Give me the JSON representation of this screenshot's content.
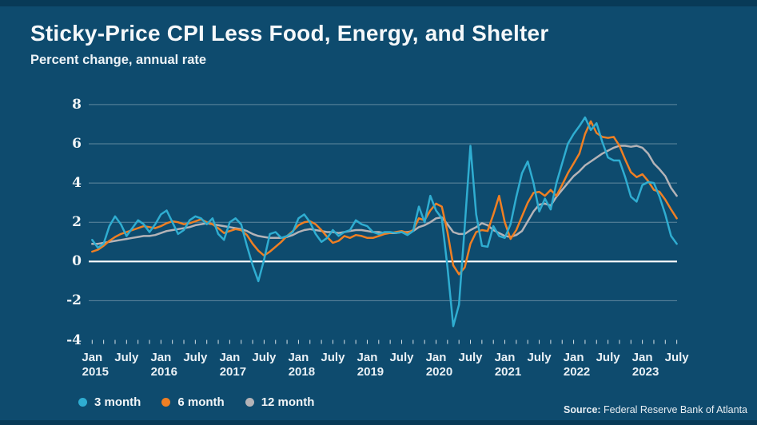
{
  "header": {
    "title": "Sticky-Price CPI Less Food, Energy, and Shelter",
    "subtitle": "Percent change, annual rate"
  },
  "legend": {
    "items": [
      {
        "label": "3 month",
        "color": "#2FADD1"
      },
      {
        "label": "6 month",
        "color": "#EF7F23"
      },
      {
        "label": "12 month",
        "color": "#B4B3B7"
      }
    ]
  },
  "source": {
    "prefix": "Source:",
    "text": " Federal Reserve Bank of Atlanta"
  },
  "colors": {
    "background": "#0E4B6E",
    "band": "#083A57",
    "grid": "rgba(255,255,255,0.34)",
    "zero_line": "#FFFFFF",
    "tick": "rgba(255,255,255,0.85)",
    "text": "#F2F6F8"
  },
  "chart_data": {
    "type": "line",
    "title": "Sticky-Price CPI Less Food, Energy, and Shelter",
    "ylabel": "Percent change, annual rate",
    "xlabel": "",
    "ylim": [
      -4,
      8
    ],
    "yticks": [
      8,
      6,
      4,
      2,
      0,
      -2,
      -4
    ],
    "x_start": "Jan 2015",
    "x_end": "July 2023",
    "frequency": "monthly",
    "legend_position": "bottom",
    "grid": "horizontal",
    "xticks": [
      {
        "m": 0,
        "label": "Jan",
        "year": "2015"
      },
      {
        "m": 6,
        "label": "July"
      },
      {
        "m": 12,
        "label": "Jan",
        "year": "2016"
      },
      {
        "m": 18,
        "label": "July"
      },
      {
        "m": 24,
        "label": "Jan",
        "year": "2017"
      },
      {
        "m": 30,
        "label": "July"
      },
      {
        "m": 36,
        "label": "Jan",
        "year": "2018"
      },
      {
        "m": 42,
        "label": "July"
      },
      {
        "m": 48,
        "label": "Jan",
        "year": "2019"
      },
      {
        "m": 54,
        "label": "July"
      },
      {
        "m": 60,
        "label": "Jan",
        "year": "2020"
      },
      {
        "m": 66,
        "label": "July"
      },
      {
        "m": 72,
        "label": "Jan",
        "year": "2021"
      },
      {
        "m": 78,
        "label": "July"
      },
      {
        "m": 84,
        "label": "Jan",
        "year": "2022"
      },
      {
        "m": 90,
        "label": "July"
      },
      {
        "m": 96,
        "label": "Jan",
        "year": "2023"
      },
      {
        "m": 102,
        "label": "July"
      }
    ],
    "series": [
      {
        "name": "3 month",
        "color": "#2FADD1",
        "values": [
          1.1,
          0.7,
          0.9,
          1.8,
          2.3,
          1.9,
          1.3,
          1.7,
          2.1,
          1.9,
          1.5,
          1.9,
          2.4,
          2.6,
          2.0,
          1.4,
          1.6,
          2.1,
          2.3,
          2.2,
          1.9,
          2.2,
          1.4,
          1.1,
          2.0,
          2.2,
          1.9,
          0.8,
          -0.2,
          -1.0,
          0.1,
          1.4,
          1.5,
          1.2,
          1.3,
          1.5,
          2.2,
          2.4,
          2.0,
          1.4,
          1.0,
          1.2,
          1.6,
          1.3,
          1.5,
          1.6,
          2.1,
          1.9,
          1.8,
          1.5,
          1.4,
          1.5,
          1.5,
          1.45,
          1.5,
          1.35,
          1.55,
          2.8,
          2.0,
          3.35,
          2.6,
          2.2,
          -0.3,
          -3.3,
          -2.2,
          1.8,
          5.9,
          2.4,
          0.8,
          0.75,
          1.8,
          1.3,
          1.2,
          1.9,
          3.3,
          4.5,
          5.1,
          4.0,
          2.55,
          3.2,
          2.65,
          4.0,
          5.0,
          6.0,
          6.5,
          6.9,
          7.35,
          6.7,
          7.05,
          6.1,
          5.3,
          5.15,
          5.15,
          4.3,
          3.3,
          3.05,
          3.9,
          4.05,
          4.0,
          3.3,
          2.4,
          1.3,
          0.9
        ]
      },
      {
        "name": "6 month",
        "color": "#EF7F23",
        "values": [
          0.5,
          0.6,
          0.8,
          1.05,
          1.25,
          1.4,
          1.5,
          1.6,
          1.7,
          1.8,
          1.75,
          1.7,
          1.8,
          1.95,
          2.05,
          2.0,
          1.9,
          1.95,
          2.05,
          2.15,
          2.0,
          1.9,
          1.7,
          1.45,
          1.55,
          1.65,
          1.6,
          1.35,
          0.9,
          0.55,
          0.3,
          0.5,
          0.75,
          1.0,
          1.3,
          1.55,
          1.85,
          2.0,
          2.05,
          1.9,
          1.6,
          1.25,
          0.95,
          1.05,
          1.3,
          1.2,
          1.35,
          1.3,
          1.2,
          1.2,
          1.3,
          1.4,
          1.45,
          1.5,
          1.55,
          1.45,
          1.6,
          2.2,
          2.1,
          2.6,
          2.95,
          2.8,
          1.5,
          -0.2,
          -0.65,
          -0.3,
          0.9,
          1.5,
          1.6,
          1.55,
          2.4,
          3.35,
          2.0,
          1.15,
          1.6,
          2.3,
          3.0,
          3.5,
          3.55,
          3.35,
          3.65,
          3.35,
          3.9,
          4.5,
          5.0,
          5.5,
          6.5,
          7.15,
          6.55,
          6.35,
          6.3,
          6.35,
          5.9,
          5.2,
          4.55,
          4.3,
          4.45,
          4.1,
          3.65,
          3.55,
          3.15,
          2.65,
          2.2
        ]
      },
      {
        "name": "12 month",
        "color": "#B4B3B7",
        "values": [
          0.9,
          0.9,
          0.95,
          1.0,
          1.05,
          1.1,
          1.15,
          1.2,
          1.25,
          1.3,
          1.3,
          1.35,
          1.45,
          1.55,
          1.6,
          1.65,
          1.7,
          1.75,
          1.85,
          1.9,
          1.95,
          1.9,
          1.85,
          1.8,
          1.75,
          1.7,
          1.65,
          1.55,
          1.4,
          1.3,
          1.25,
          1.2,
          1.2,
          1.2,
          1.25,
          1.35,
          1.5,
          1.6,
          1.65,
          1.6,
          1.55,
          1.5,
          1.5,
          1.45,
          1.5,
          1.55,
          1.6,
          1.6,
          1.55,
          1.5,
          1.5,
          1.45,
          1.45,
          1.45,
          1.5,
          1.5,
          1.55,
          1.75,
          1.85,
          2.0,
          2.2,
          2.25,
          1.9,
          1.5,
          1.4,
          1.4,
          1.6,
          1.75,
          1.95,
          1.85,
          1.6,
          1.45,
          1.3,
          1.25,
          1.35,
          1.55,
          2.05,
          2.55,
          2.9,
          2.95,
          2.85,
          3.3,
          3.65,
          4.0,
          4.35,
          4.6,
          4.9,
          5.1,
          5.3,
          5.5,
          5.65,
          5.8,
          5.9,
          5.9,
          5.85,
          5.9,
          5.8,
          5.5,
          5.0,
          4.7,
          4.35,
          3.75,
          3.35
        ]
      }
    ]
  }
}
